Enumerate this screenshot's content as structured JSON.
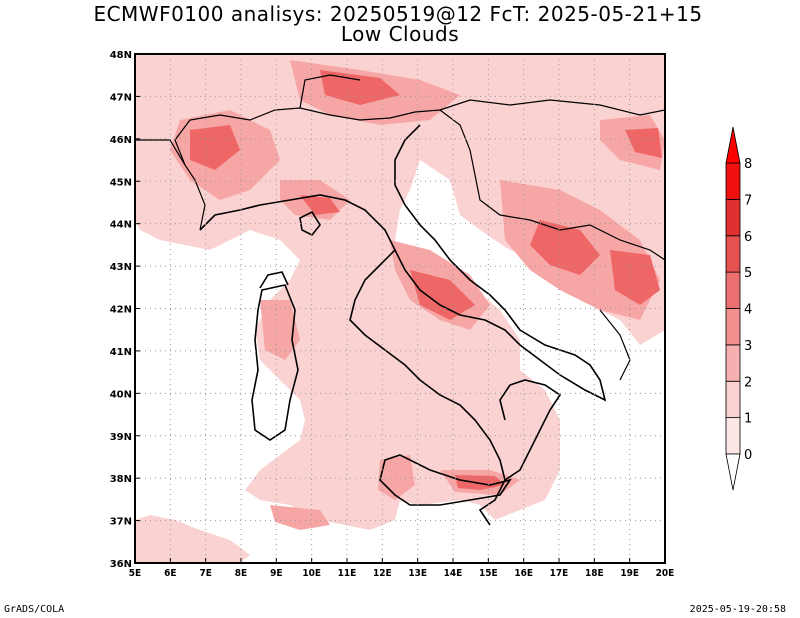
{
  "title": "ECMWF0100 analisys: 20250519@12 FcT: 2025-05-21+15",
  "subtitle": "Low Clouds",
  "footer": {
    "left": "GrADS/COLA",
    "right": "2025-05-19-20:58"
  },
  "axes": {
    "lon_labels": [
      "5E",
      "6E",
      "7E",
      "8E",
      "9E",
      "10E",
      "11E",
      "12E",
      "13E",
      "14E",
      "15E",
      "16E",
      "17E",
      "18E",
      "19E",
      "20E"
    ],
    "lat_labels": [
      "36N",
      "37N",
      "38N",
      "39N",
      "40N",
      "41N",
      "42N",
      "43N",
      "44N",
      "45N",
      "46N",
      "47N",
      "48N"
    ],
    "lon_range": [
      5,
      20
    ],
    "lat_range": [
      36,
      48
    ],
    "grid": true
  },
  "colorbar": {
    "labels": [
      "0",
      "1",
      "2",
      "3",
      "4",
      "5",
      "6",
      "7",
      "8"
    ],
    "colors": [
      "#fde6e6",
      "#fbd0d0",
      "#f7b0b0",
      "#f29090",
      "#ec7070",
      "#e55050",
      "#e03030",
      "#f01010",
      "#ff0000"
    ]
  },
  "colors": {
    "land_base": "#fbd2d2",
    "coast": "#000000",
    "grid": "#999999"
  }
}
